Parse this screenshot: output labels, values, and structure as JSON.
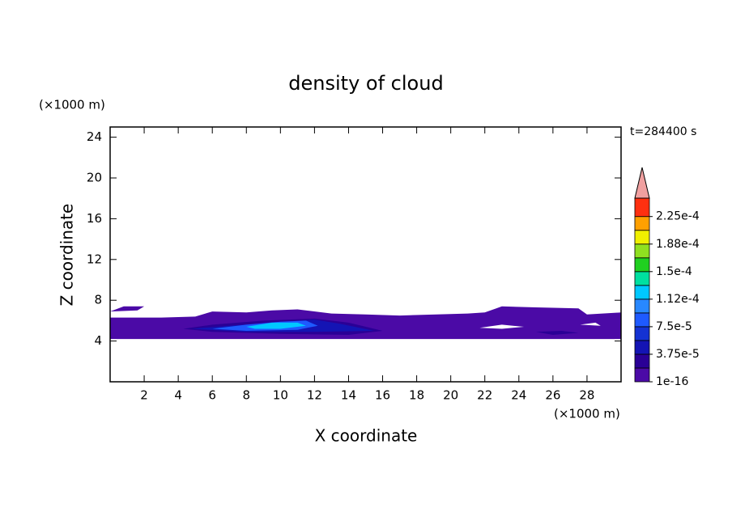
{
  "chart_data": {
    "type": "contour",
    "title": "density of cloud",
    "time_label": "t=284400 s",
    "xlabel": "X coordinate",
    "ylabel": "Z coordinate",
    "xunit": "(×1000 m)",
    "yunit": "(×1000 m)",
    "xlim": [
      0,
      30
    ],
    "xticks": [
      2,
      4,
      6,
      8,
      10,
      12,
      14,
      16,
      18,
      20,
      22,
      24,
      26,
      28
    ],
    "ylim": [
      0,
      25
    ],
    "yticks": [
      4,
      8,
      12,
      16,
      20,
      24
    ],
    "levels": [
      1e-16,
      1.875e-05,
      3.75e-05,
      5.625e-05,
      7.5e-05,
      9.375e-05,
      0.0001125,
      0.00013125,
      0.00015,
      0.00016875,
      0.0001875,
      0.00020625,
      0.000225
    ],
    "colors": [
      "#4b0aa6",
      "#2a0096",
      "#1414b4",
      "#1432d2",
      "#1e5aff",
      "#2888ff",
      "#00c8ff",
      "#00e0a0",
      "#20d020",
      "#90e020",
      "#f0f000",
      "#ffa000",
      "#ff3010"
    ],
    "clim": [
      1e-16,
      0.00025
    ],
    "extend_color": "#f0a0a0",
    "colorbar_ticks": [
      {
        "value": 1e-16,
        "label": "1e-16"
      },
      {
        "value": 3.75e-05,
        "label": "3.75e-5"
      },
      {
        "value": 7.5e-05,
        "label": "7.5e-5"
      },
      {
        "value": 0.0001125,
        "label": "1.12e-4"
      },
      {
        "value": 0.00015,
        "label": "1.5e-4"
      },
      {
        "value": 0.0001875,
        "label": "1.88e-4"
      },
      {
        "value": 0.000225,
        "label": "2.25e-4"
      }
    ]
  }
}
